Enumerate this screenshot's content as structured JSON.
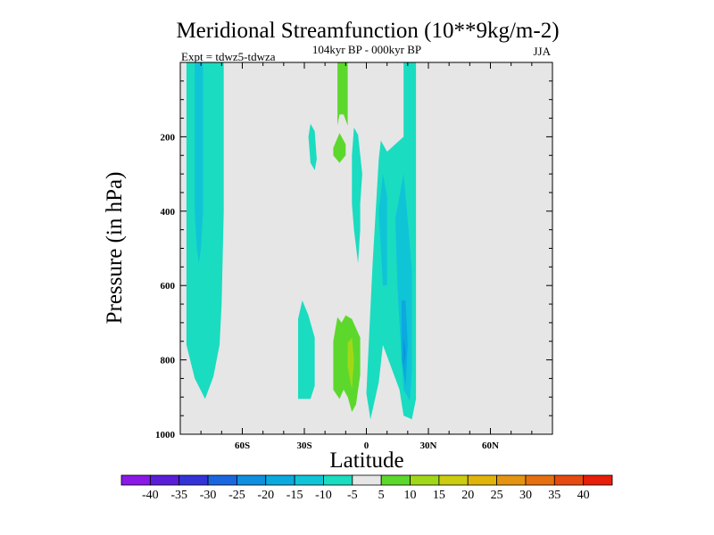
{
  "chart_data": {
    "type": "heatmap",
    "title": "Meridional Streamfunction (10**9kg/m-2)",
    "subtitle": "104kyr BP - 000kyr BP",
    "left_label": "Expt = tdwz5-tdwza",
    "season": "JJA",
    "xlabel": "Latitude",
    "ylabel": "Pressure (in hPa)",
    "xlim": [
      -90,
      90
    ],
    "ylim": [
      1000,
      0
    ],
    "x_ticks": [
      {
        "value": -60,
        "label": "60S"
      },
      {
        "value": -30,
        "label": "30S"
      },
      {
        "value": 0,
        "label": "0"
      },
      {
        "value": 30,
        "label": "30N"
      },
      {
        "value": 60,
        "label": "60N"
      }
    ],
    "y_ticks": [
      {
        "value": 200,
        "label": "200"
      },
      {
        "value": 400,
        "label": "400"
      },
      {
        "value": 600,
        "label": "600"
      },
      {
        "value": 800,
        "label": "800"
      },
      {
        "value": 1000,
        "label": "1000"
      }
    ],
    "background_color": "#e6e6e6",
    "colorbar": {
      "levels": [
        -40,
        -35,
        -30,
        -25,
        -20,
        -15,
        -10,
        -5,
        5,
        10,
        15,
        20,
        25,
        30,
        35,
        40
      ],
      "labels": [
        "-40",
        "-35",
        "-30",
        "-25",
        "-20",
        "-15",
        "-10",
        "-5",
        "5",
        "10",
        "15",
        "20",
        "25",
        "30",
        "35",
        "40"
      ],
      "colors": [
        "#8a18e6",
        "#5a1ed8",
        "#3333d8",
        "#1a66e0",
        "#0e8fe0",
        "#0aaade",
        "#10c4d8",
        "#1adcc0",
        "#e6e6e6",
        "#5cd82c",
        "#a0d818",
        "#cccc10",
        "#e0b40a",
        "#e49412",
        "#e67010",
        "#e64a10",
        "#e61e0a"
      ]
    },
    "contour_regions": [
      {
        "name": "sh-high-lat-neg",
        "color": "#1adcc0",
        "points": [
          [
            -87,
            0
          ],
          [
            -69,
            0
          ],
          [
            -69,
            400
          ],
          [
            -70,
            650
          ],
          [
            -71,
            760
          ],
          [
            -74,
            845
          ],
          [
            -78,
            905
          ],
          [
            -83,
            850
          ],
          [
            -87,
            760
          ],
          [
            -87,
            650
          ]
        ]
      },
      {
        "name": "sh-high-lat-core",
        "color": "#10c4d8",
        "points": [
          [
            -83,
            0
          ],
          [
            -79,
            0
          ],
          [
            -79,
            400
          ],
          [
            -80,
            500
          ],
          [
            -81,
            540
          ],
          [
            -82,
            500
          ],
          [
            -83,
            400
          ]
        ]
      },
      {
        "name": "sh-subtrop-upper",
        "color": "#1adcc0",
        "points": [
          [
            -27,
            165
          ],
          [
            -25,
            185
          ],
          [
            -24,
            260
          ],
          [
            -25,
            290
          ],
          [
            -27,
            270
          ],
          [
            -28,
            200
          ]
        ]
      },
      {
        "name": "sh-subtrop-lower",
        "color": "#1adcc0",
        "points": [
          [
            -33,
            690
          ],
          [
            -31,
            640
          ],
          [
            -28,
            680
          ],
          [
            -25,
            740
          ],
          [
            -25,
            870
          ],
          [
            -27,
            905
          ],
          [
            -33,
            905
          ]
        ]
      },
      {
        "name": "eq-upper-green",
        "color": "#5cd82c",
        "points": [
          [
            -14,
            0
          ],
          [
            -9,
            0
          ],
          [
            -9,
            170
          ],
          [
            -11,
            140
          ],
          [
            -13,
            140
          ],
          [
            -14,
            170
          ]
        ]
      },
      {
        "name": "eq-mid-green",
        "color": "#5cd82c",
        "points": [
          [
            -16,
            230
          ],
          [
            -13,
            190
          ],
          [
            -10,
            220
          ],
          [
            -10,
            250
          ],
          [
            -13,
            270
          ],
          [
            -16,
            250
          ]
        ]
      },
      {
        "name": "eq-mid-cyan",
        "color": "#1adcc0",
        "points": [
          [
            -6,
            175
          ],
          [
            -4,
            195
          ],
          [
            -2,
            300
          ],
          [
            -3,
            380
          ],
          [
            -3,
            450
          ],
          [
            -4,
            540
          ],
          [
            -6,
            450
          ],
          [
            -7,
            380
          ],
          [
            -7,
            250
          ]
        ]
      },
      {
        "name": "eq-lower-green",
        "color": "#5cd82c",
        "points": [
          [
            -16,
            750
          ],
          [
            -14,
            685
          ],
          [
            -12,
            700
          ],
          [
            -10,
            680
          ],
          [
            -7,
            690
          ],
          [
            -3,
            740
          ],
          [
            -3,
            840
          ],
          [
            -5,
            920
          ],
          [
            -7,
            940
          ],
          [
            -9,
            900
          ],
          [
            -11,
            880
          ],
          [
            -13,
            905
          ],
          [
            -16,
            880
          ]
        ]
      },
      {
        "name": "eq-lower-yellow",
        "color": "#a0d818",
        "points": [
          [
            -9,
            755
          ],
          [
            -7,
            740
          ],
          [
            -6,
            800
          ],
          [
            -7,
            880
          ],
          [
            -9,
            820
          ]
        ]
      },
      {
        "name": "nh-trop-band",
        "color": "#1adcc0",
        "points": [
          [
            2,
            960
          ],
          [
            0,
            890
          ],
          [
            3,
            540
          ],
          [
            6,
            260
          ],
          [
            7,
            210
          ],
          [
            10,
            240
          ],
          [
            14,
            220
          ],
          [
            18,
            200
          ],
          [
            18,
            0
          ],
          [
            24,
            0
          ],
          [
            24,
            800
          ],
          [
            24,
            905
          ],
          [
            22,
            960
          ],
          [
            18,
            950
          ],
          [
            16,
            880
          ],
          [
            12,
            820
          ],
          [
            8,
            760
          ],
          [
            6,
            860
          ]
        ]
      },
      {
        "name": "nh-trop-core-a",
        "color": "#10c4d8",
        "points": [
          [
            6,
            400
          ],
          [
            8,
            300
          ],
          [
            10,
            360
          ],
          [
            10,
            600
          ],
          [
            8,
            600
          ]
        ]
      },
      {
        "name": "nh-trop-core-b",
        "color": "#10c4d8",
        "points": [
          [
            14,
            420
          ],
          [
            18,
            300
          ],
          [
            20,
            420
          ],
          [
            22,
            560
          ],
          [
            22,
            830
          ],
          [
            21,
            910
          ],
          [
            18,
            880
          ],
          [
            16,
            700
          ],
          [
            15,
            600
          ]
        ]
      },
      {
        "name": "nh-trop-core-c",
        "color": "#0aaade",
        "points": [
          [
            17,
            640
          ],
          [
            19,
            640
          ],
          [
            20,
            760
          ],
          [
            19,
            870
          ],
          [
            17,
            800
          ]
        ]
      },
      {
        "name": "nh-trop-core-d",
        "color": "#0e8fe0",
        "points": [
          [
            18,
            740
          ],
          [
            19,
            780
          ],
          [
            18,
            820
          ]
        ]
      }
    ]
  }
}
